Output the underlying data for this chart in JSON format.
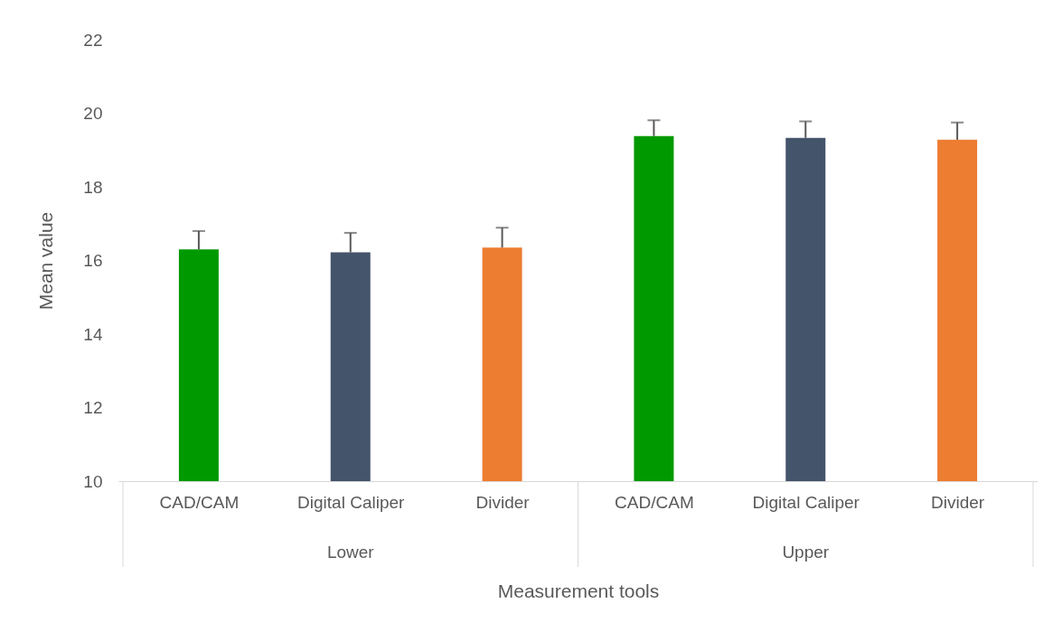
{
  "chart_data": {
    "type": "bar",
    "xlabel": "Measurement tools",
    "ylabel": "Mean value",
    "categories": [
      "CAD/CAM",
      "Digital Caliper",
      "Divider",
      "CAD/CAM",
      "Digital Caliper",
      "Divider"
    ],
    "values": [
      16.3,
      16.22,
      16.35,
      19.38,
      19.33,
      19.28
    ],
    "errors": [
      0.5,
      0.53,
      0.54,
      0.43,
      0.45,
      0.47
    ],
    "colors": [
      "#009900",
      "#44546a",
      "#ed7d31",
      "#009900",
      "#44546a",
      "#ed7d31"
    ],
    "ylim": [
      10,
      22
    ],
    "yticks": [
      10,
      12,
      14,
      16,
      18,
      20,
      22
    ],
    "annotations": [
      "Lower",
      "Upper"
    ],
    "grid": false
  }
}
